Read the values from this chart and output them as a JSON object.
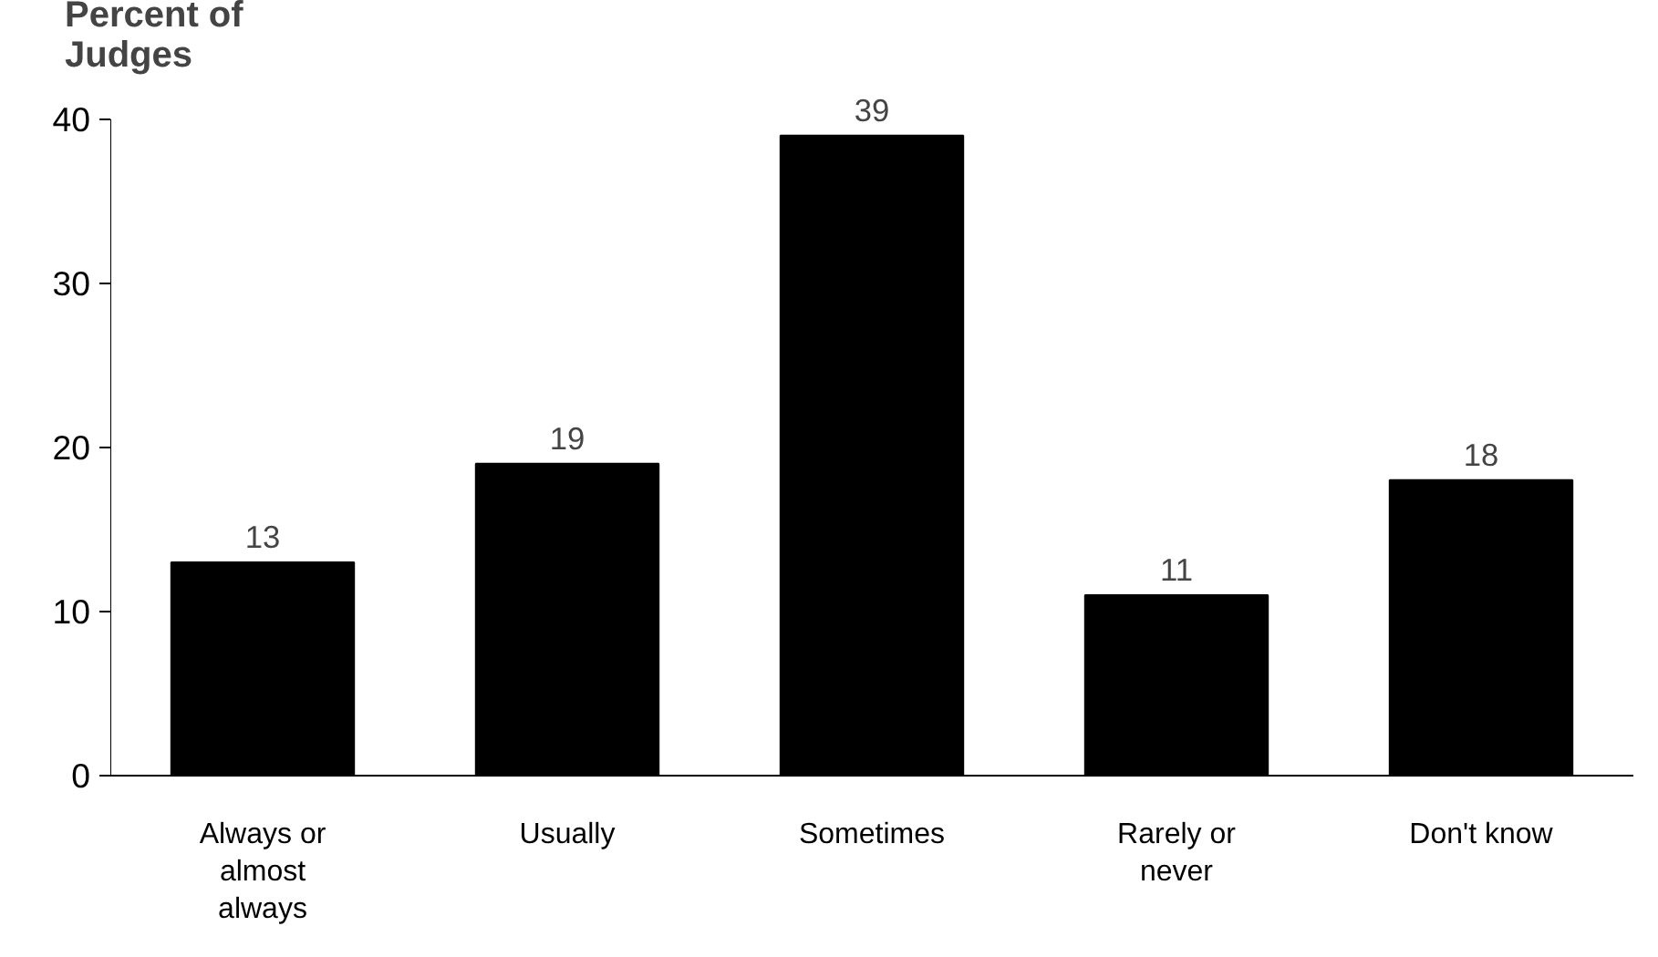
{
  "chart_data": {
    "type": "bar",
    "ylabel": "Percent of Judges",
    "categories": [
      "Always or almost always",
      "Usually",
      "Sometimes",
      "Rarely or never",
      "Don't know"
    ],
    "values": [
      13,
      19,
      39,
      11,
      18
    ],
    "color": "#000000",
    "ylim": [
      0,
      40
    ],
    "yticks": [
      0,
      10,
      20,
      30,
      40
    ],
    "grid": false,
    "data_labels": true
  }
}
